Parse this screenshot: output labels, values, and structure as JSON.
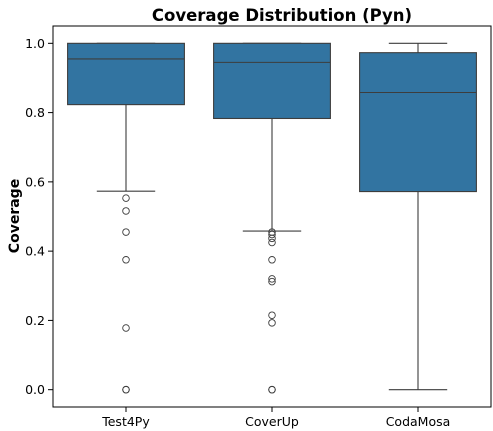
{
  "chart_data": {
    "type": "box",
    "title": "Coverage Distribution (Pyn)",
    "xlabel": "",
    "ylabel": "Coverage",
    "ylim": [
      -0.05,
      1.05
    ],
    "yticks": [
      0.0,
      0.2,
      0.4,
      0.6,
      0.8,
      1.0
    ],
    "ytick_labels": [
      "0.0",
      "0.2",
      "0.4",
      "0.6",
      "0.8",
      "1.0"
    ],
    "grid": false,
    "legend": "none",
    "box_color": "#3274a1",
    "edge_color": "#3d3d3d",
    "categories": [
      "Test4Py",
      "CoverUp",
      "CodaMosa"
    ],
    "boxes": [
      {
        "category": "Test4Py",
        "whisker_low": 0.573,
        "q1": 0.823,
        "median": 0.955,
        "q3": 1.0,
        "whisker_high": 1.0,
        "outliers": [
          0.553,
          0.516,
          0.455,
          0.375,
          0.178,
          0.0,
          0.0
        ]
      },
      {
        "category": "CoverUp",
        "whisker_low": 0.458,
        "q1": 0.783,
        "median": 0.945,
        "q3": 1.0,
        "whisker_high": 1.0,
        "outliers": [
          0.455,
          0.448,
          0.437,
          0.425,
          0.375,
          0.32,
          0.312,
          0.215,
          0.193,
          0.0,
          0.0
        ]
      },
      {
        "category": "CodaMosa",
        "whisker_low": 0.0,
        "q1": 0.572,
        "median": 0.858,
        "q3": 0.973,
        "whisker_high": 1.0,
        "outliers": []
      }
    ]
  }
}
